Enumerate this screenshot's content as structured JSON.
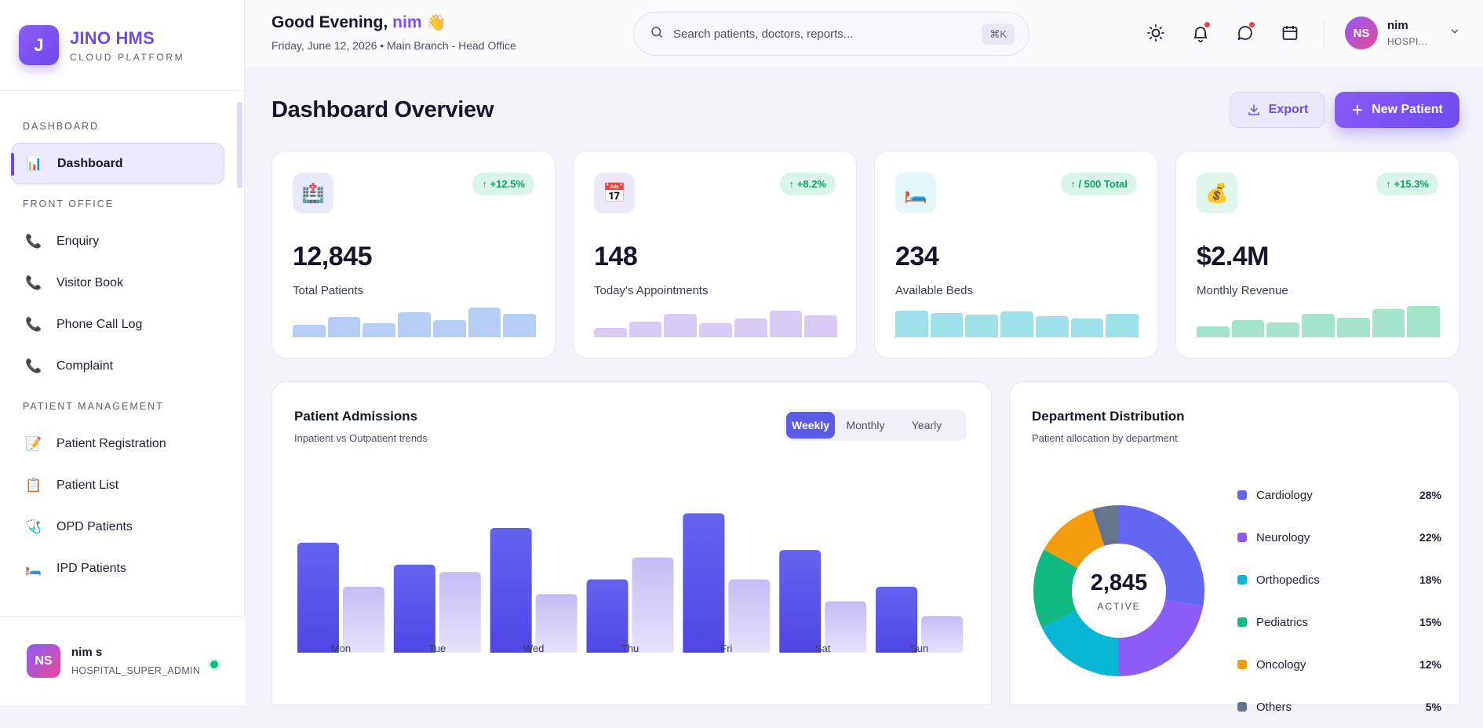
{
  "brand": {
    "logo_letter": "J",
    "name": "JINO HMS",
    "subtitle": "CLOUD PLATFORM"
  },
  "sidebar": {
    "sections": [
      {
        "label": "DASHBOARD",
        "items": [
          {
            "label": "Dashboard",
            "icon": "bar-chart-icon",
            "active": true
          }
        ]
      },
      {
        "label": "FRONT OFFICE",
        "items": [
          {
            "label": "Enquiry",
            "icon": "phone-icon"
          },
          {
            "label": "Visitor Book",
            "icon": "phone-icon"
          },
          {
            "label": "Phone Call Log",
            "icon": "phone-icon"
          },
          {
            "label": "Complaint",
            "icon": "phone-icon"
          }
        ]
      },
      {
        "label": "PATIENT MANAGEMENT",
        "items": [
          {
            "label": "Patient Registration",
            "icon": "memo-icon"
          },
          {
            "label": "Patient List",
            "icon": "clipboard-icon"
          },
          {
            "label": "OPD Patients",
            "icon": "stethoscope-icon"
          },
          {
            "label": "IPD Patients",
            "icon": "bed-icon"
          }
        ]
      }
    ],
    "user": {
      "initials": "NS",
      "name": "nim s",
      "role": "HOSPITAL_SUPER_ADMIN",
      "status": "online"
    }
  },
  "topbar": {
    "greeting_prefix": "Good Evening,",
    "greeting_name": "nim",
    "wave": "👋",
    "date_line": "Friday, June 12, 2026 • Main Branch - Head Office",
    "search_placeholder": "Search patients, doctors, reports...",
    "search_shortcut": "⌘K",
    "icons": [
      "sun-icon",
      "bell-icon",
      "chat-icon",
      "calendar-icon"
    ],
    "profile": {
      "initials": "NS",
      "name": "nim",
      "role": "HOSPI..."
    }
  },
  "page": {
    "title": "Dashboard Overview",
    "export_label": "Export",
    "new_patient_label": "New Patient"
  },
  "stats": [
    {
      "value": "12,845",
      "label": "Total Patients",
      "badge": "↑ +12.5%",
      "icon": "hospital-icon",
      "icon_bg": "#e8eafc",
      "spark_color": "#b6cdf6",
      "spark": [
        0.4,
        0.65,
        0.45,
        0.8,
        0.55,
        0.95,
        0.75
      ]
    },
    {
      "value": "148",
      "label": "Today's Appointments",
      "badge": "↑ +8.2%",
      "icon": "calendar-page-icon",
      "icon_bg": "#ede9fb",
      "spark_color": "#d8ccf7",
      "spark": [
        0.3,
        0.5,
        0.75,
        0.45,
        0.6,
        0.85,
        0.7
      ]
    },
    {
      "value": "234",
      "label": "Available Beds",
      "badge": "↑ / 500 Total",
      "icon": "bed-icon",
      "icon_bg": "#e3f7f8",
      "spark_color": "#9fe1ea",
      "spark": [
        0.85,
        0.78,
        0.72,
        0.82,
        0.68,
        0.6,
        0.75
      ]
    },
    {
      "value": "$2.4M",
      "label": "Monthly Revenue",
      "badge": "↑ +15.3%",
      "icon": "money-bag-icon",
      "icon_bg": "#dff6ec",
      "spark_color": "#a5e6cb",
      "spark": [
        0.35,
        0.55,
        0.48,
        0.75,
        0.62,
        0.9,
        1.0
      ]
    }
  ],
  "admissions": {
    "title": "Patient Admissions",
    "subtitle": "Inpatient vs Outpatient trends",
    "tabs": [
      "Weekly",
      "Monthly",
      "Yearly"
    ],
    "active_tab": "Weekly"
  },
  "departments": {
    "title": "Department Distribution",
    "subtitle": "Patient allocation by department",
    "center_value": "2,845",
    "center_label": "ACTIVE"
  },
  "chart_data": [
    {
      "type": "bar",
      "categories": [
        "Mon",
        "Tue",
        "Wed",
        "Thu",
        "Fri",
        "Sat",
        "Sun"
      ],
      "series": [
        {
          "values": [
            75,
            60,
            85,
            50,
            95,
            70,
            45
          ],
          "color": "#5b5bea"
        },
        {
          "values": [
            45,
            55,
            40,
            65,
            50,
            35,
            25
          ],
          "color": "#c9c3f6"
        }
      ],
      "ylim": [
        0,
        100
      ]
    },
    {
      "type": "pie",
      "labels": [
        "Cardiology",
        "Neurology",
        "Orthopedics",
        "Pediatrics",
        "Oncology",
        "Others"
      ],
      "values": [
        28,
        22,
        18,
        15,
        12,
        5
      ],
      "display": [
        "28%",
        "22%",
        "18%",
        "15%",
        "12%",
        "5%"
      ],
      "colors": [
        "#6366f1",
        "#8b5cf6",
        "#06b6d4",
        "#10b981",
        "#f59e0b",
        "#64748b"
      ]
    }
  ]
}
